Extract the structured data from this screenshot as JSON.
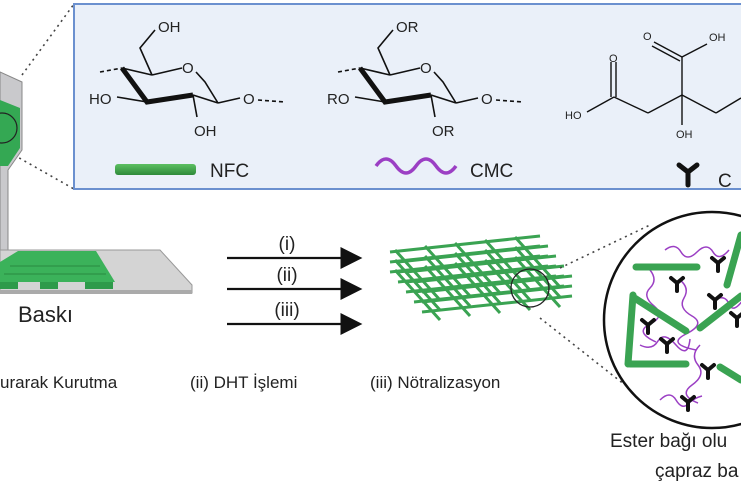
{
  "box": {
    "nfc": {
      "oh_top": "OH",
      "ring_o": "O",
      "ho": "HO",
      "link_o": "O",
      "oh_bottom": "OH",
      "legend": "NFC"
    },
    "cmc": {
      "or_top": "OR",
      "ring_o": "O",
      "ro": "RO",
      "link_o": "O",
      "or_bottom": "OR",
      "legend": "CMC"
    },
    "citric": {
      "o1": "O",
      "oh1": "OH",
      "o2": "O",
      "ho": "HO",
      "oh_center": "OH",
      "legend": "C"
    }
  },
  "printing": {
    "label": "Baskı"
  },
  "arrows": [
    "(i)",
    "(ii)",
    "(iii)"
  ],
  "steps": [
    "urarak Kurutma",
    "(ii) DHT İşlemi",
    "(iii) Nötralizasyon"
  ],
  "network": {
    "line1": "Ester bağı olu",
    "line2": "çapraz ba"
  },
  "colors": {
    "nfc": "#3a9a45",
    "cmc": "#9b3fc4",
    "box_bg": "#eaf0f9",
    "box_border": "#6b90cf",
    "crosslinker": "#111111"
  }
}
